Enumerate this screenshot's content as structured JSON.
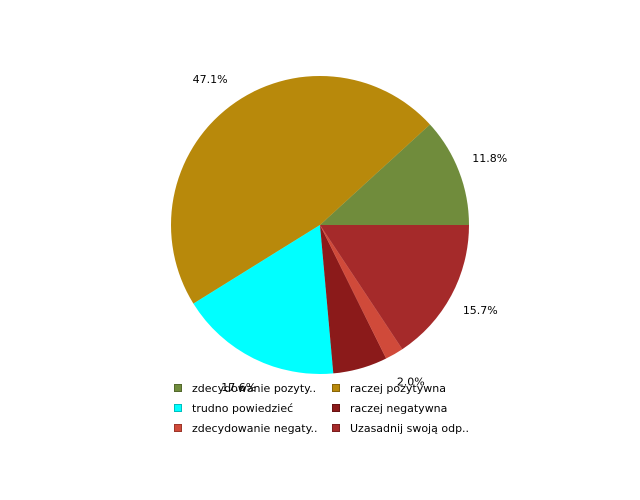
{
  "chart_data": {
    "type": "pie",
    "slices": [
      {
        "label": "zdecydowanie pozyty..",
        "value": 11.8,
        "pct_label": "11.8%",
        "color": "#708c3c"
      },
      {
        "label": "raczej pozytywna",
        "value": 47.1,
        "pct_label": "47.1%",
        "color": "#b8890b"
      },
      {
        "label": "trudno powiedzieć",
        "value": 17.6,
        "pct_label": "17.6%",
        "color": "#00ffff"
      },
      {
        "label": "raczej negatywna",
        "value": 5.9,
        "pct_label": "",
        "color": "#8b1a1a"
      },
      {
        "label": "zdecydowanie negaty..",
        "value": 2.0,
        "pct_label": "2.0%",
        "color": "#d04a3a"
      },
      {
        "label": "Uzasadnij swoją odp..",
        "value": 15.7,
        "pct_label": "15.7%",
        "color": "#a52a2a"
      }
    ],
    "start_angle_deg": 0,
    "direction": "counterclockwise",
    "legend_position": "bottom"
  }
}
